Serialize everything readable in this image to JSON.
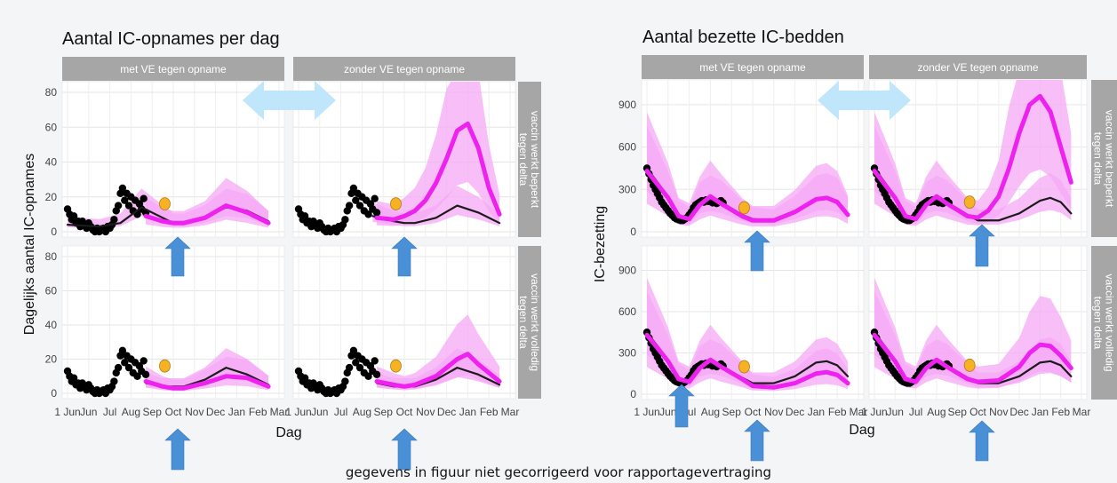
{
  "footnote": "gegevens in figuur niet gecorrigeerd voor rapportagevertraging",
  "colors": {
    "observed": "#000000",
    "model_black": "#1b1b1b",
    "model_magenta": "#ee22ee",
    "band": "#f6a8f6",
    "strip": "#a6a6a6",
    "marker": "#f6b223",
    "big_arrow": "#bfe6fa",
    "up_arrow": "#4a90d6"
  },
  "chart_data": [
    {
      "type": "line",
      "title": "Aantal IC-opnames per dag",
      "xlabel": "Dag",
      "ylabel": "Dagelijks aantal IC-opnames",
      "x_ticks": [
        "1 Jun",
        "Jun",
        "Jul",
        "Aug",
        "Sep",
        "Oct",
        "Nov",
        "Dec",
        "Jan",
        "Feb",
        "Mar"
      ],
      "y_ticks": [
        0,
        20,
        40,
        60,
        80
      ],
      "ylim": [
        0,
        80
      ],
      "column_strips": [
        "met VE tegen opname",
        "zonder VE tegen opname"
      ],
      "row_strips": [
        "vaccin werkt beperkt tegen delta",
        "vaccin werkt volledig tegen delta"
      ],
      "series": [
        {
          "name": "",
          "panel": "top-left",
          "kind": "model_black",
          "x": [
            0,
            1.5,
            2.5,
            3.5,
            4.5,
            5,
            5.5,
            6.5,
            7.5,
            8.5,
            9.5
          ],
          "y": [
            4,
            3,
            5,
            14,
            8,
            5,
            5,
            8,
            14,
            12,
            6
          ]
        },
        {
          "name": "",
          "panel": "top-left",
          "kind": "model_magenta",
          "x": [
            3.7,
            4.5,
            5,
            5.5,
            6.5,
            7.5,
            8.5,
            9.5
          ],
          "y": [
            9,
            6,
            5,
            5,
            8,
            15,
            11,
            5
          ]
        },
        {
          "name": "",
          "panel": "top-right",
          "kind": "model_black",
          "x": [
            3.5,
            4.5,
            5,
            5.5,
            6.5,
            7.5,
            8.5,
            9.5
          ],
          "y": [
            9,
            6,
            5,
            5,
            8,
            15,
            11,
            5
          ]
        },
        {
          "name": "",
          "panel": "top-right",
          "kind": "model_magenta",
          "x": [
            3.7,
            4.5,
            5,
            5.5,
            6,
            6.5,
            7,
            7.5,
            8,
            8.5,
            9,
            9.5
          ],
          "y": [
            8,
            7,
            9,
            12,
            18,
            28,
            42,
            58,
            62,
            48,
            25,
            10
          ]
        },
        {
          "name": "",
          "panel": "bottom-left",
          "kind": "model_black",
          "x": [
            3.7,
            4.5,
            5,
            5.5,
            6.5,
            7.5,
            8.5,
            9.5
          ],
          "y": [
            6,
            4,
            4,
            4,
            8,
            15,
            11,
            5
          ]
        },
        {
          "name": "",
          "panel": "bottom-left",
          "kind": "model_magenta",
          "x": [
            3.7,
            4.5,
            5,
            5.5,
            6.5,
            7.5,
            8.5,
            9.5
          ],
          "y": [
            7,
            4,
            3,
            3,
            6,
            10,
            9,
            4
          ]
        },
        {
          "name": "",
          "panel": "bottom-right",
          "kind": "model_black",
          "x": [
            3.7,
            4.5,
            5,
            5.5,
            6.5,
            7.5,
            8.5,
            9.5
          ],
          "y": [
            6,
            4,
            4,
            4,
            8,
            15,
            11,
            5
          ]
        },
        {
          "name": "",
          "panel": "bottom-right",
          "kind": "model_magenta",
          "x": [
            3.7,
            4.5,
            5,
            5.5,
            6.5,
            7.5,
            8,
            8.5,
            9.5
          ],
          "y": [
            7,
            5,
            4,
            5,
            10,
            20,
            23,
            17,
            7
          ]
        }
      ],
      "observed_points": [
        {
          "x": 0.0,
          "y": 13
        },
        {
          "x": 0.1,
          "y": 10
        },
        {
          "x": 0.2,
          "y": 7
        },
        {
          "x": 0.3,
          "y": 9
        },
        {
          "x": 0.4,
          "y": 5
        },
        {
          "x": 0.5,
          "y": 6
        },
        {
          "x": 0.6,
          "y": 3
        },
        {
          "x": 0.7,
          "y": 6
        },
        {
          "x": 0.8,
          "y": 4
        },
        {
          "x": 0.9,
          "y": 2
        },
        {
          "x": 1.0,
          "y": 5
        },
        {
          "x": 1.1,
          "y": 3
        },
        {
          "x": 1.2,
          "y": 1
        },
        {
          "x": 1.3,
          "y": 0
        },
        {
          "x": 1.4,
          "y": 2
        },
        {
          "x": 1.5,
          "y": 0
        },
        {
          "x": 1.6,
          "y": 1
        },
        {
          "x": 1.7,
          "y": 2
        },
        {
          "x": 1.8,
          "y": 0
        },
        {
          "x": 1.9,
          "y": 3
        },
        {
          "x": 2.0,
          "y": 2
        },
        {
          "x": 2.1,
          "y": 4
        },
        {
          "x": 2.2,
          "y": 7
        },
        {
          "x": 2.3,
          "y": 12
        },
        {
          "x": 2.4,
          "y": 15
        },
        {
          "x": 2.5,
          "y": 22
        },
        {
          "x": 2.6,
          "y": 25
        },
        {
          "x": 2.7,
          "y": 18
        },
        {
          "x": 2.8,
          "y": 22
        },
        {
          "x": 2.9,
          "y": 15
        },
        {
          "x": 3.0,
          "y": 20
        },
        {
          "x": 3.1,
          "y": 12
        },
        {
          "x": 3.2,
          "y": 18
        },
        {
          "x": 3.3,
          "y": 10
        },
        {
          "x": 3.4,
          "y": 16
        },
        {
          "x": 3.5,
          "y": 13
        },
        {
          "x": 3.6,
          "y": 19
        },
        {
          "x": 3.7,
          "y": 11
        }
      ],
      "markers": [
        {
          "panel": "top-left",
          "x": 4.6,
          "y": 16
        },
        {
          "panel": "top-right",
          "x": 4.6,
          "y": 16
        },
        {
          "panel": "bottom-left",
          "x": 4.6,
          "y": 16
        },
        {
          "panel": "bottom-right",
          "x": 4.6,
          "y": 16
        }
      ]
    },
    {
      "type": "line",
      "title": "Aantal bezette IC-bedden",
      "xlabel": "Dag",
      "ylabel": "IC-bezetting",
      "x_ticks": [
        "1 Jun",
        "Jun",
        "Jul",
        "Aug",
        "Sep",
        "Oct",
        "Nov",
        "Dec",
        "Jan",
        "Feb",
        "Mar"
      ],
      "y_ticks": [
        0,
        300,
        600,
        900
      ],
      "ylim": [
        0,
        1000
      ],
      "column_strips": [
        "met VE tegen opname",
        "zonder VE tegen opname"
      ],
      "row_strips": [
        "vaccin werkt beperkt tegen delta",
        "vaccin werkt volledig tegen delta"
      ],
      "series": [
        {
          "name": "",
          "panel": "top-left",
          "kind": "model_black",
          "x": [
            0,
            1,
            1.5,
            2,
            2.5,
            3,
            3.5,
            4.5,
            5,
            6,
            7,
            8,
            8.5,
            9,
            9.5
          ],
          "y": [
            450,
            250,
            120,
            90,
            200,
            230,
            210,
            120,
            90,
            80,
            140,
            230,
            240,
            220,
            130
          ]
        },
        {
          "name": "",
          "panel": "top-left",
          "kind": "model_magenta",
          "x": [
            0,
            1,
            1.5,
            2,
            2.5,
            3,
            3.5,
            4.5,
            5,
            6,
            7,
            8,
            8.5,
            9,
            9.5
          ],
          "y": [
            430,
            240,
            110,
            90,
            190,
            250,
            200,
            110,
            80,
            80,
            140,
            230,
            240,
            210,
            120
          ]
        },
        {
          "name": "",
          "panel": "top-right",
          "kind": "model_black",
          "x": [
            0,
            1,
            1.5,
            2,
            2.5,
            3,
            3.5,
            4.5,
            5,
            6,
            7,
            8,
            8.5,
            9,
            9.5
          ],
          "y": [
            450,
            250,
            120,
            90,
            200,
            230,
            210,
            120,
            80,
            80,
            130,
            220,
            240,
            210,
            130
          ]
        },
        {
          "name": "",
          "panel": "top-right",
          "kind": "model_magenta",
          "x": [
            0,
            1,
            1.5,
            2,
            2.5,
            3,
            3.5,
            4.5,
            5,
            5.5,
            6,
            6.5,
            7,
            7.5,
            8,
            8.5,
            9,
            9.5
          ],
          "y": [
            430,
            240,
            110,
            90,
            190,
            250,
            200,
            110,
            100,
            150,
            250,
            450,
            700,
            900,
            960,
            850,
            600,
            350
          ]
        },
        {
          "name": "",
          "panel": "bottom-left",
          "kind": "model_black",
          "x": [
            0,
            1,
            1.5,
            2,
            2.5,
            3,
            3.5,
            4.5,
            5,
            6,
            7,
            8,
            8.5,
            9,
            9.5
          ],
          "y": [
            450,
            250,
            120,
            90,
            200,
            230,
            210,
            120,
            80,
            80,
            130,
            230,
            240,
            210,
            130
          ]
        },
        {
          "name": "",
          "panel": "bottom-left",
          "kind": "model_magenta",
          "x": [
            0,
            1,
            1.5,
            2,
            2.5,
            3,
            3.5,
            4.5,
            5,
            6,
            7,
            8,
            8.5,
            9,
            9.5
          ],
          "y": [
            430,
            240,
            110,
            90,
            190,
            250,
            200,
            110,
            60,
            50,
            80,
            150,
            160,
            140,
            80
          ]
        },
        {
          "name": "",
          "panel": "bottom-right",
          "kind": "model_black",
          "x": [
            0,
            1,
            1.5,
            2,
            2.5,
            3,
            3.5,
            4.5,
            5,
            6,
            7,
            8,
            8.5,
            9,
            9.5
          ],
          "y": [
            450,
            250,
            120,
            90,
            200,
            230,
            210,
            120,
            80,
            80,
            130,
            230,
            240,
            210,
            130
          ]
        },
        {
          "name": "",
          "panel": "bottom-right",
          "kind": "model_magenta",
          "x": [
            0,
            1,
            1.5,
            2,
            2.5,
            3,
            3.5,
            4.5,
            5,
            6,
            7,
            7.5,
            8,
            8.5,
            9,
            9.5
          ],
          "y": [
            430,
            240,
            110,
            90,
            190,
            250,
            200,
            110,
            90,
            100,
            200,
            300,
            360,
            350,
            280,
            190
          ]
        }
      ],
      "observed_points": [
        {
          "x": 0.0,
          "y": 450
        },
        {
          "x": 0.1,
          "y": 410
        },
        {
          "x": 0.2,
          "y": 370
        },
        {
          "x": 0.3,
          "y": 330
        },
        {
          "x": 0.4,
          "y": 300
        },
        {
          "x": 0.5,
          "y": 270
        },
        {
          "x": 0.6,
          "y": 240
        },
        {
          "x": 0.7,
          "y": 210
        },
        {
          "x": 0.8,
          "y": 190
        },
        {
          "x": 0.9,
          "y": 170
        },
        {
          "x": 1.0,
          "y": 150
        },
        {
          "x": 1.1,
          "y": 130
        },
        {
          "x": 1.2,
          "y": 115
        },
        {
          "x": 1.3,
          "y": 100
        },
        {
          "x": 1.4,
          "y": 90
        },
        {
          "x": 1.5,
          "y": 85
        },
        {
          "x": 1.6,
          "y": 80
        },
        {
          "x": 1.7,
          "y": 80
        },
        {
          "x": 1.8,
          "y": 90
        },
        {
          "x": 1.9,
          "y": 100
        },
        {
          "x": 2.0,
          "y": 120
        },
        {
          "x": 2.1,
          "y": 140
        },
        {
          "x": 2.2,
          "y": 170
        },
        {
          "x": 2.3,
          "y": 190
        },
        {
          "x": 2.4,
          "y": 200
        },
        {
          "x": 2.5,
          "y": 210
        },
        {
          "x": 2.6,
          "y": 220
        },
        {
          "x": 2.7,
          "y": 210
        },
        {
          "x": 2.8,
          "y": 225
        },
        {
          "x": 2.9,
          "y": 215
        },
        {
          "x": 3.0,
          "y": 220
        },
        {
          "x": 3.1,
          "y": 205
        },
        {
          "x": 3.2,
          "y": 215
        },
        {
          "x": 3.3,
          "y": 200
        },
        {
          "x": 3.4,
          "y": 210
        },
        {
          "x": 3.5,
          "y": 220
        },
        {
          "x": 3.6,
          "y": 205
        }
      ],
      "markers": [
        {
          "panel": "top-left",
          "x": 4.6,
          "y": 170
        },
        {
          "panel": "top-right",
          "x": 4.6,
          "y": 210
        },
        {
          "panel": "bottom-left",
          "x": 4.6,
          "y": 200
        },
        {
          "panel": "bottom-right",
          "x": 4.6,
          "y": 210
        }
      ]
    }
  ]
}
